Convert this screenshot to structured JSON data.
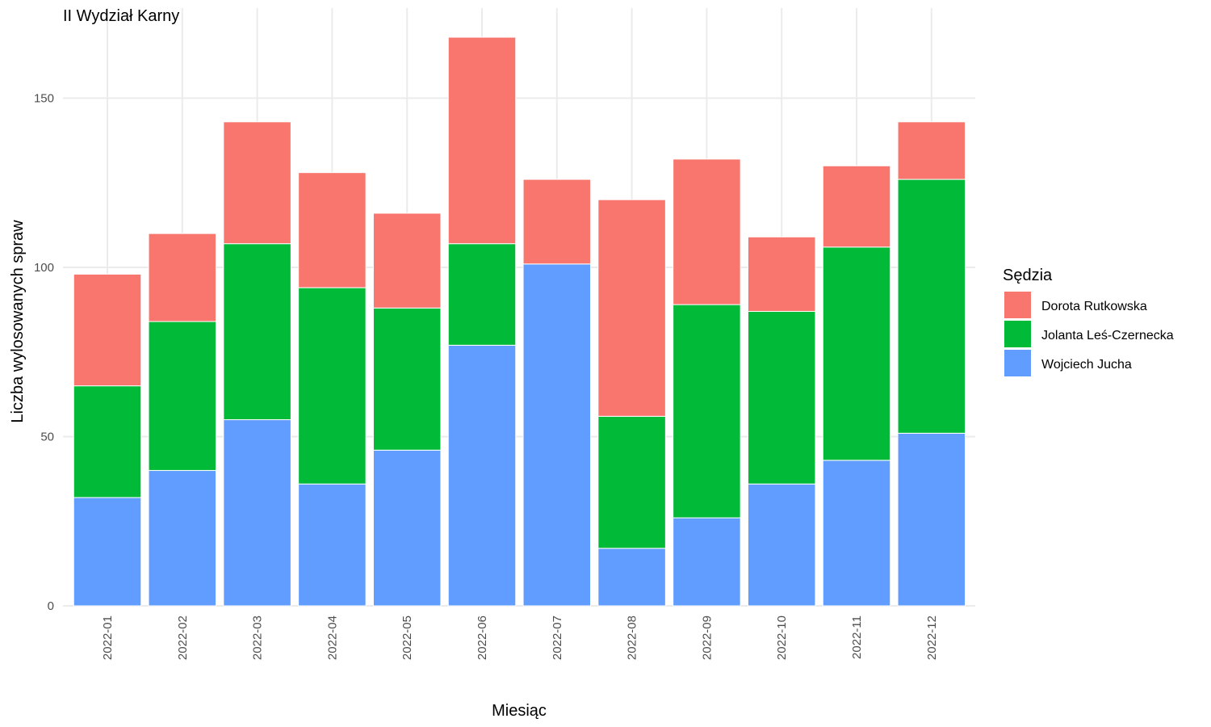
{
  "chart_data": {
    "type": "bar",
    "stacked": true,
    "title": "II Wydział Karny",
    "xlabel": "Miesiąc",
    "ylabel": "Liczba wylosowanych spraw",
    "ylim": [
      0,
      170
    ],
    "yticks": [
      0,
      50,
      100,
      150
    ],
    "grid": true,
    "legend_title": "Sędzia",
    "legend_position": "right",
    "categories": [
      "2022-01",
      "2022-02",
      "2022-03",
      "2022-04",
      "2022-05",
      "2022-06",
      "2022-07",
      "2022-08",
      "2022-09",
      "2022-10",
      "2022-11",
      "2022-12"
    ],
    "series": [
      {
        "name": "Wojciech Jucha",
        "color": "#619cff",
        "values": [
          32,
          40,
          55,
          36,
          46,
          77,
          101,
          17,
          26,
          36,
          43,
          51
        ]
      },
      {
        "name": "Jolanta Leś-Czernecka",
        "color": "#00ba38",
        "values": [
          33,
          44,
          52,
          58,
          42,
          30,
          0,
          39,
          63,
          51,
          63,
          75
        ]
      },
      {
        "name": "Dorota Rutkowska",
        "color": "#f8766d",
        "values": [
          33,
          26,
          36,
          34,
          28,
          61,
          25,
          64,
          43,
          22,
          24,
          17
        ]
      }
    ],
    "legend_order": [
      "Dorota Rutkowska",
      "Jolanta Leś-Czernecka",
      "Wojciech Jucha"
    ]
  }
}
